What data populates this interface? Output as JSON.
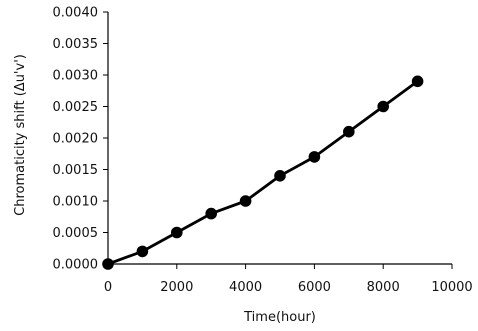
{
  "chart_data": {
    "type": "line",
    "title": "",
    "xlabel": "Time(hour)",
    "ylabel": "Chromaticity shift (Δu'v')",
    "xlim": [
      0,
      10000
    ],
    "ylim": [
      0,
      0.004
    ],
    "x_ticks": [
      "0",
      "2000",
      "4000",
      "6000",
      "8000",
      "10000"
    ],
    "y_ticks": [
      "0.0000",
      "0.0005",
      "0.0010",
      "0.0015",
      "0.0020",
      "0.0025",
      "0.0030",
      "0.0035",
      "0.0040"
    ],
    "grid": false,
    "legend": "none",
    "series": [
      {
        "color": "#000000",
        "marker": "circle",
        "x": [
          0,
          1000,
          2000,
          3000,
          4000,
          5000,
          6000,
          7000,
          8000,
          9000
        ],
        "y": [
          0.0,
          0.0002,
          0.0005,
          0.0008,
          0.001,
          0.0014,
          0.0017,
          0.0021,
          0.0025,
          0.0029
        ]
      }
    ]
  }
}
